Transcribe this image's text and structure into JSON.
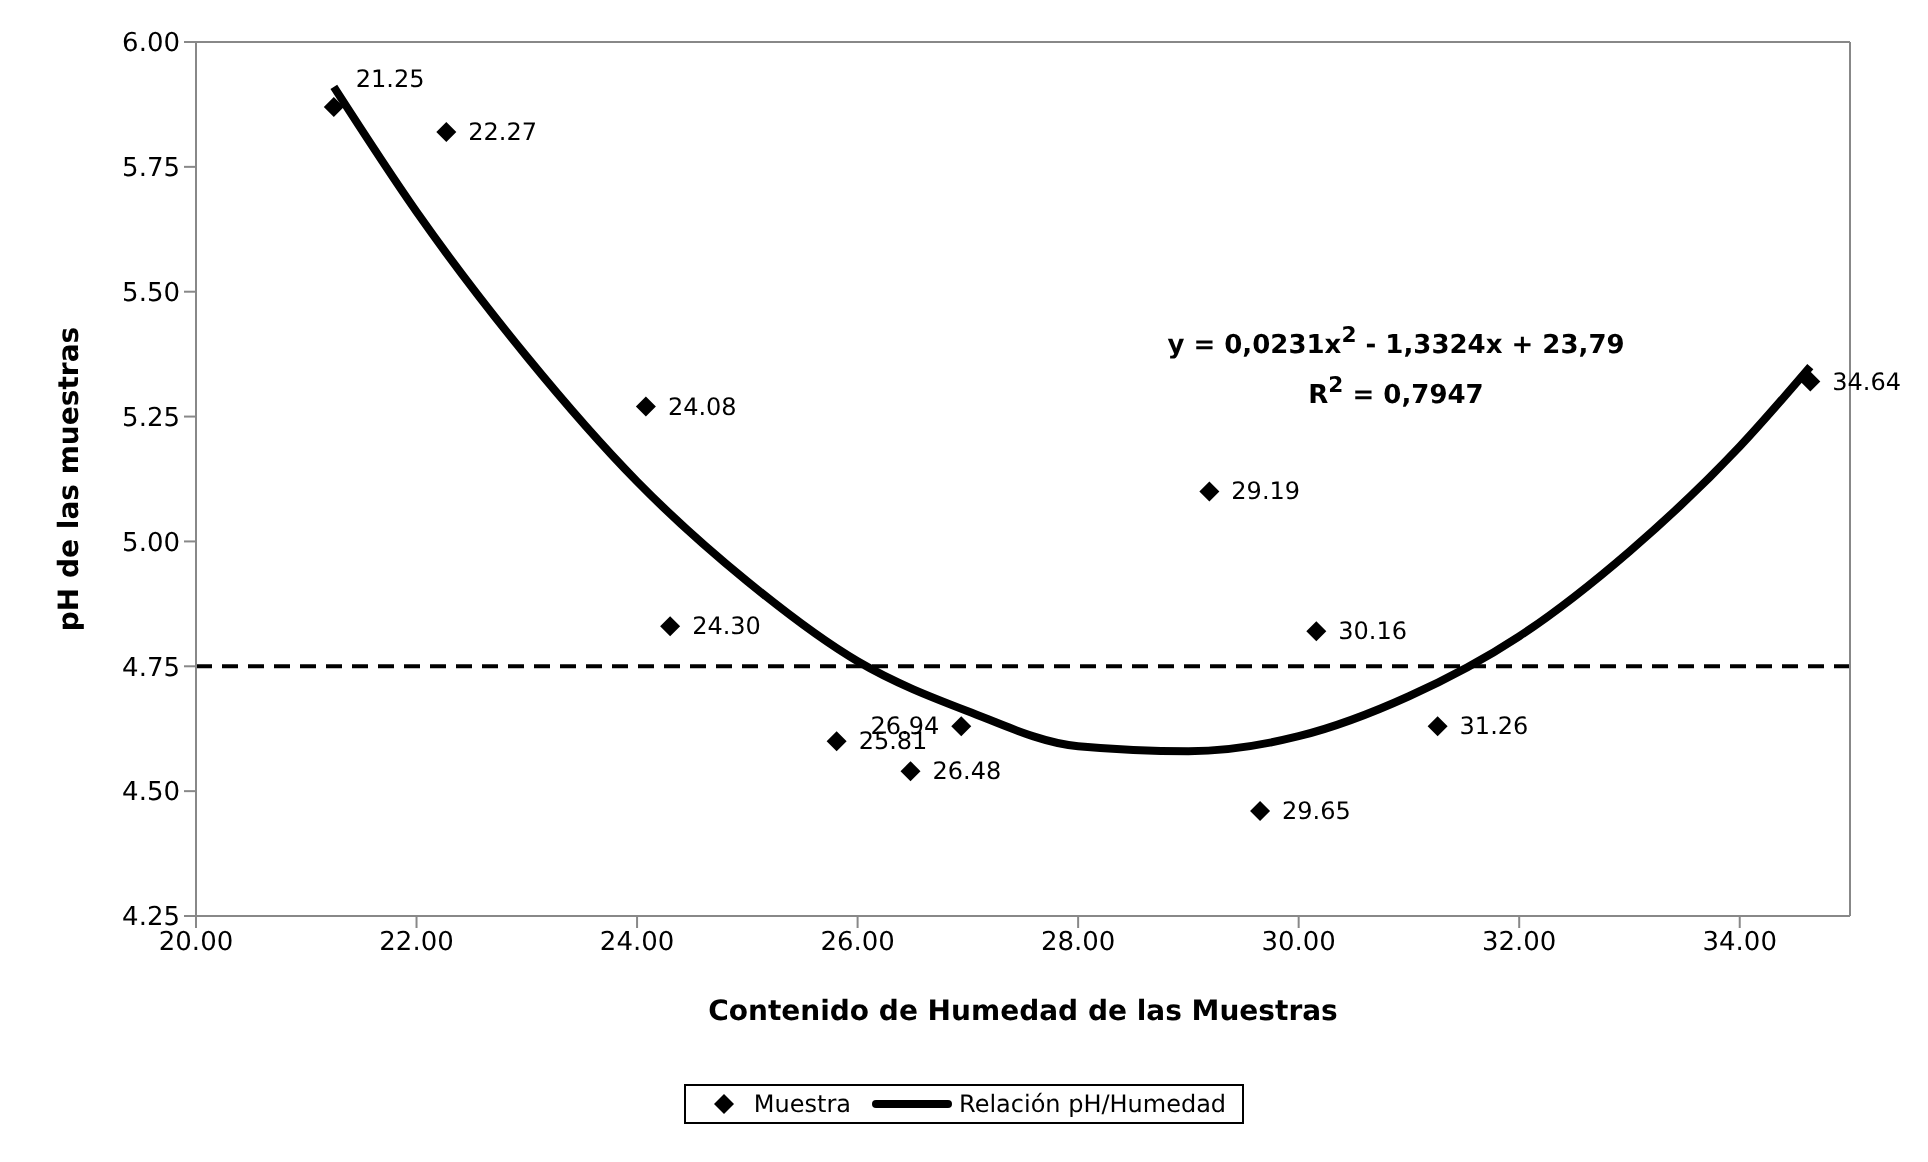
{
  "chart_data": {
    "type": "scatter",
    "xlabel": "Contenido de Humedad de las Muestras",
    "ylabel": "pH de las muestras",
    "xlim": [
      20,
      35
    ],
    "xticks": [
      {
        "value": 20,
        "label": "20.00"
      },
      {
        "value": 22,
        "label": "22.00"
      },
      {
        "value": 24,
        "label": "24.00"
      },
      {
        "value": 26,
        "label": "26.00"
      },
      {
        "value": 28,
        "label": "28.00"
      },
      {
        "value": 30,
        "label": "30.00"
      },
      {
        "value": 32,
        "label": "32.00"
      },
      {
        "value": 34,
        "label": "34.00"
      }
    ],
    "ylim": [
      4.25,
      6
    ],
    "yticks": [
      {
        "value": 4.25,
        "label": "4.25"
      },
      {
        "value": 4.5,
        "label": "4.50"
      },
      {
        "value": 4.75,
        "label": "4.75"
      },
      {
        "value": 5,
        "label": "5.00"
      },
      {
        "value": 5.25,
        "label": "5.25"
      },
      {
        "value": 5.5,
        "label": "5.50"
      },
      {
        "value": 5.75,
        "label": "5.75"
      },
      {
        "value": 6,
        "label": "6.00"
      }
    ],
    "legend": "bottom",
    "series": [
      {
        "name": "Muestra",
        "type": "scatter",
        "color": "#000000",
        "marker": "diamond",
        "x": [
          21.25,
          22.27,
          24.08,
          24.3,
          25.81,
          26.48,
          26.94,
          29.19,
          29.65,
          30.16,
          31.26,
          34.64
        ],
        "values": [
          5.87,
          5.82,
          5.27,
          4.83,
          4.6,
          4.54,
          4.63,
          5.1,
          4.46,
          4.82,
          4.63,
          5.32
        ]
      },
      {
        "name": "Relación pH/Humedad",
        "type": "line",
        "color": "#000000",
        "marker": "none",
        "line_style": "solid",
        "x": [
          21.25,
          22,
          23,
          24,
          25,
          26,
          27,
          28,
          29,
          30,
          31,
          32,
          33,
          34,
          34.64
        ],
        "values": [
          5.91,
          5.66,
          5.37,
          5.12,
          4.92,
          4.76,
          4.66,
          4.59,
          4.58,
          4.61,
          4.69,
          4.81,
          4.98,
          5.19,
          5.35
        ]
      }
    ],
    "ref_lines": [
      {
        "axis": "y",
        "value": 4.75,
        "line_style": "dashed",
        "color": "#000000"
      }
    ],
    "annotations": [
      "y = 0,0231x$^{2}$ - 1,3324x + 23,79",
      "R$^{2}$ = 0,7947",
      {
        "text": "21.25",
        "x": 21.25,
        "y": 5.87
      },
      {
        "text": "22.27",
        "x": 22.27,
        "y": 5.82
      },
      {
        "text": "24.08",
        "x": 24.08,
        "y": 5.27
      },
      {
        "text": "24.30",
        "x": 24.3,
        "y": 4.83
      },
      {
        "text": "25.81",
        "x": 25.81,
        "y": 4.6
      },
      {
        "text": "26.48",
        "x": 26.48,
        "y": 4.54
      },
      {
        "text": "26.94",
        "x": 26.94,
        "y": 4.63
      },
      {
        "text": "29.19",
        "x": 29.19,
        "y": 5.1
      },
      {
        "text": "29.65",
        "x": 29.65,
        "y": 4.46
      },
      {
        "text": "30.16",
        "x": 30.16,
        "y": 4.82
      },
      {
        "text": "31.26",
        "x": 31.26,
        "y": 4.63
      },
      {
        "text": "34.64",
        "x": 34.64,
        "y": 5.32
      }
    ]
  }
}
